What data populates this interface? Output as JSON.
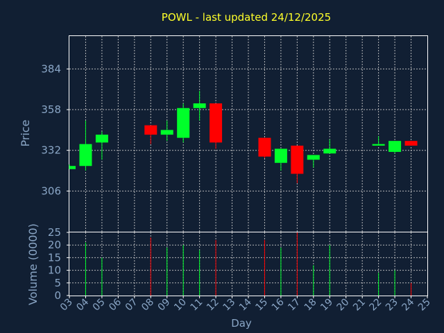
{
  "title": "POWL - last updated 24/12/2025",
  "colors": {
    "background": "#111f33",
    "title": "#ffff2a",
    "axis_text": "#8aa6c6",
    "up": "#00ff2a",
    "down": "#ff0000",
    "grid": "#c8c8c8",
    "frame": "#ffffff"
  },
  "chart_data": [
    {
      "type": "candlestick",
      "ylabel": "Price",
      "y_ticks": [
        306,
        332,
        358,
        384
      ],
      "ylim": [
        280,
        405
      ],
      "grid": true,
      "days": [
        "03",
        "04",
        "05",
        "06",
        "07",
        "08",
        "09",
        "10",
        "11",
        "12",
        "13",
        "14",
        "15",
        "16",
        "17",
        "18",
        "19",
        "20",
        "21",
        "22",
        "23",
        "24",
        "25"
      ],
      "candles": [
        {
          "day": "03",
          "open": 320,
          "close": 322,
          "high": 323,
          "low": 320
        },
        {
          "day": "04",
          "open": 322,
          "close": 336,
          "high": 351,
          "low": 319
        },
        {
          "day": "05",
          "open": 337,
          "close": 342,
          "high": 344,
          "low": 326
        },
        {
          "day": "08",
          "open": 348,
          "close": 342,
          "high": 348,
          "low": 336
        },
        {
          "day": "09",
          "open": 342,
          "close": 345,
          "high": 351,
          "low": 338
        },
        {
          "day": "10",
          "open": 340,
          "close": 359,
          "high": 362,
          "low": 337
        },
        {
          "day": "11",
          "open": 359,
          "close": 362,
          "high": 370,
          "low": 351
        },
        {
          "day": "12",
          "open": 362,
          "close": 337,
          "high": 362,
          "low": 333
        },
        {
          "day": "15",
          "open": 340,
          "close": 328,
          "high": 340,
          "low": 327
        },
        {
          "day": "16",
          "open": 324,
          "close": 333,
          "high": 333,
          "low": 319
        },
        {
          "day": "17",
          "open": 335,
          "close": 317,
          "high": 335,
          "low": 311
        },
        {
          "day": "18",
          "open": 326,
          "close": 329,
          "high": 329,
          "low": 321
        },
        {
          "day": "19",
          "open": 330,
          "close": 333,
          "high": 339,
          "low": 330
        },
        {
          "day": "22",
          "open": 335,
          "close": 336,
          "high": 341,
          "low": 335
        },
        {
          "day": "23",
          "open": 331,
          "close": 338,
          "high": 338,
          "low": 330
        },
        {
          "day": "24",
          "open": 338,
          "close": 335,
          "high": 338,
          "low": 335
        }
      ]
    },
    {
      "type": "bar",
      "ylabel": "Volume (0000)",
      "xlabel": "Day",
      "y_ticks": [
        0,
        5,
        10,
        15,
        20,
        25
      ],
      "ylim": [
        0,
        25
      ],
      "grid": true,
      "bars": [
        {
          "day": "04",
          "value": 21,
          "direction": "up"
        },
        {
          "day": "05",
          "value": 15,
          "direction": "up"
        },
        {
          "day": "08",
          "value": 23,
          "direction": "down"
        },
        {
          "day": "09",
          "value": 19,
          "direction": "up"
        },
        {
          "day": "10",
          "value": 20,
          "direction": "up"
        },
        {
          "day": "11",
          "value": 18,
          "direction": "up"
        },
        {
          "day": "12",
          "value": 22,
          "direction": "down"
        },
        {
          "day": "15",
          "value": 22,
          "direction": "down"
        },
        {
          "day": "16",
          "value": 19,
          "direction": "up"
        },
        {
          "day": "17",
          "value": 25,
          "direction": "down"
        },
        {
          "day": "18",
          "value": 12,
          "direction": "up"
        },
        {
          "day": "19",
          "value": 20,
          "direction": "up"
        },
        {
          "day": "22",
          "value": 9,
          "direction": "up"
        },
        {
          "day": "23",
          "value": 10,
          "direction": "up"
        },
        {
          "day": "24",
          "value": 5,
          "direction": "down"
        }
      ]
    }
  ]
}
